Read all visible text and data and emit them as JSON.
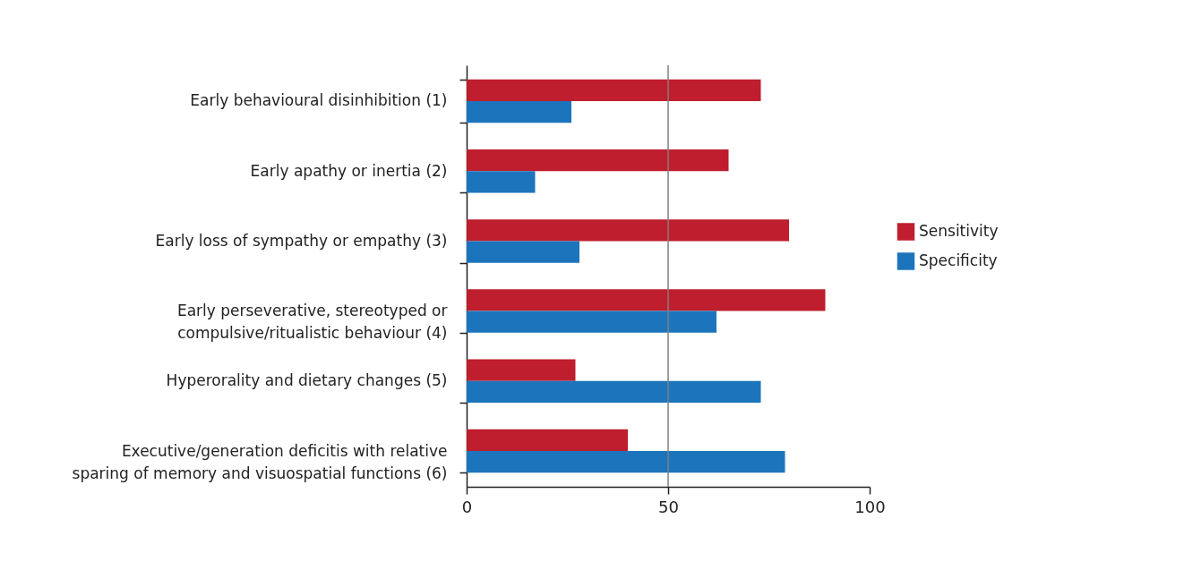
{
  "chart_data": {
    "type": "bar",
    "orientation": "horizontal",
    "categories": [
      "Early behavioural disinhibition (1)",
      "Early apathy or inertia (2)",
      "Early loss of sympathy or empathy (3)",
      "Early perseverative, stereotyped or\ncompulsive/ritualistic behaviour (4)",
      "Hyperorality and dietary changes (5)",
      "Executive/generation deficitis with relative\nsparing of memory and visuospatial functions (6)"
    ],
    "series": [
      {
        "name": "Sensitivity",
        "color": "#be1e2d",
        "values": [
          73,
          65,
          80,
          89,
          27,
          40
        ]
      },
      {
        "name": "Specificity",
        "color": "#1c75bc",
        "values": [
          26,
          17,
          28,
          62,
          73,
          79
        ]
      }
    ],
    "xlim": [
      0,
      100
    ],
    "xticks": [
      0,
      50,
      100
    ],
    "ref_lines": [
      {
        "axis": "x",
        "value": 50,
        "color": "#808080"
      }
    ],
    "grid": false,
    "legend": "right"
  }
}
